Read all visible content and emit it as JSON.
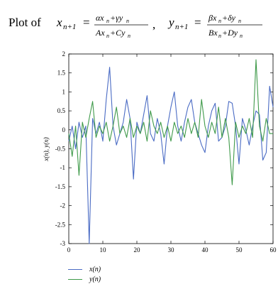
{
  "title": {
    "prefix": "Plot of",
    "x_lhs": "x",
    "x_lhs_sub": "n+1",
    "x_num_parts": [
      "αx",
      "n",
      "+γy",
      "n"
    ],
    "x_den_parts": [
      "Ax",
      "n",
      "+Cy",
      "n"
    ],
    "sep": ",",
    "y_lhs": "y",
    "y_lhs_sub": "n+1",
    "y_num_parts": [
      "βx",
      "n",
      "+δy",
      "n"
    ],
    "y_den_parts": [
      "Bx",
      "n",
      "+Dy",
      "n"
    ]
  },
  "chart_data": {
    "type": "line",
    "xlabel": "n",
    "ylabel": "x(n), y(n)",
    "xlim": [
      0,
      60
    ],
    "ylim": [
      -3,
      2
    ],
    "xticks": [
      0,
      10,
      20,
      30,
      40,
      50,
      60
    ],
    "yticks": [
      -3,
      -2.5,
      -2,
      -1.5,
      -1,
      -0.5,
      0,
      0.5,
      1,
      1.5,
      2
    ],
    "legend_position": "below",
    "series": [
      {
        "name": "x(n)",
        "color": "#4a6bc4",
        "x": [
          0,
          1,
          2,
          3,
          4,
          5,
          6,
          7,
          8,
          9,
          10,
          11,
          12,
          13,
          14,
          15,
          16,
          17,
          18,
          19,
          20,
          21,
          22,
          23,
          24,
          25,
          26,
          27,
          28,
          29,
          30,
          31,
          32,
          33,
          34,
          35,
          36,
          37,
          38,
          39,
          40,
          41,
          42,
          43,
          44,
          45,
          46,
          47,
          48,
          49,
          50,
          51,
          52,
          53,
          54,
          55,
          56,
          57,
          58,
          59,
          60
        ],
        "values": [
          -0.3,
          0.1,
          -0.5,
          0.2,
          -0.2,
          0.1,
          -3.0,
          0.3,
          -0.1,
          0.2,
          -0.3,
          0.8,
          1.65,
          0.1,
          -0.4,
          -0.1,
          0.2,
          0.8,
          0.3,
          -1.3,
          0.2,
          -0.1,
          0.4,
          0.9,
          -0.1,
          -0.3,
          0.3,
          -0.1,
          -0.9,
          0.1,
          0.6,
          1.0,
          0.1,
          -0.3,
          0.2,
          0.6,
          0.8,
          0.2,
          -0.1,
          -0.4,
          -0.6,
          0.1,
          0.5,
          0.7,
          -0.3,
          -0.2,
          0.1,
          0.75,
          0.7,
          0.1,
          -0.9,
          0.3,
          0.0,
          -0.4,
          0.1,
          0.5,
          0.4,
          -0.8,
          -0.6,
          1.15,
          0.6
        ]
      },
      {
        "name": "y(n)",
        "color": "#3f9a4a",
        "x": [
          0,
          1,
          2,
          3,
          4,
          5,
          6,
          7,
          8,
          9,
          10,
          11,
          12,
          13,
          14,
          15,
          16,
          17,
          18,
          19,
          20,
          21,
          22,
          23,
          24,
          25,
          26,
          27,
          28,
          29,
          30,
          31,
          32,
          33,
          34,
          35,
          36,
          37,
          38,
          39,
          40,
          41,
          42,
          43,
          44,
          45,
          46,
          47,
          48,
          49,
          50,
          51,
          52,
          53,
          54,
          55,
          56,
          57,
          58,
          59,
          60
        ],
        "values": [
          -0.1,
          -0.7,
          0.1,
          -1.2,
          0.2,
          -0.2,
          0.3,
          0.75,
          -0.2,
          0.1,
          -0.1,
          0.2,
          -0.3,
          0.1,
          0.6,
          -0.1,
          0.1,
          -0.2,
          0.3,
          -0.2,
          0.1,
          -0.1,
          0.2,
          -0.3,
          0.5,
          0.1,
          -0.1,
          0.2,
          -0.2,
          0.1,
          -0.3,
          0.2,
          -0.1,
          0.1,
          -0.2,
          0.3,
          -0.1,
          0.2,
          -0.2,
          0.8,
          0.1,
          -0.2,
          0.2,
          -0.1,
          0.6,
          -0.2,
          0.3,
          -0.2,
          -1.45,
          0.2,
          -0.2,
          0.1,
          -0.1,
          0.3,
          -0.2,
          1.85,
          0.1,
          -0.3,
          0.3,
          -0.1,
          -0.1
        ]
      }
    ]
  }
}
